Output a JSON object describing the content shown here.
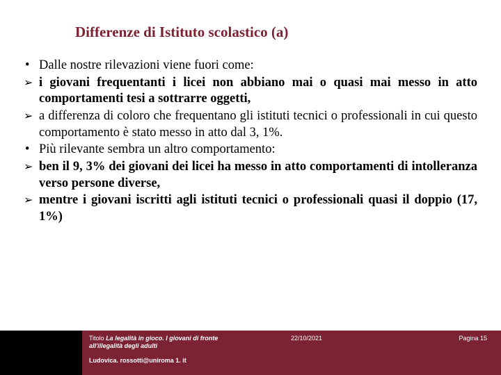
{
  "title_color": "#7b2233",
  "text_color": "#000000",
  "footer_bg": "#7b2233",
  "footer_left_bg": "#000000",
  "title": "Differenze di Istituto scolastico (a)",
  "bullets": [
    {
      "type": "dot",
      "bold": false,
      "justify": false,
      "text": "Dalle nostre rilevazioni viene fuori come:"
    },
    {
      "type": "arrow",
      "bold": true,
      "justify": true,
      "text": " i giovani frequentanti i licei non abbiano mai o quasi mai messo in atto comportamenti tesi a sottrarre oggetti,"
    },
    {
      "type": "arrow",
      "bold": false,
      "justify": true,
      "text": "a differenza di coloro che frequentano gli istituti tecnici o professionali in cui questo comportamento è stato messo in atto dal 3, 1%."
    },
    {
      "type": "dot",
      "bold": false,
      "justify": false,
      "text": "Più rilevante sembra un altro comportamento:"
    },
    {
      "type": "arrow",
      "bold": true,
      "justify": true,
      "text": "ben il 9, 3% dei giovani dei licei ha messo in atto comportamenti di intolleranza verso persone diverse,"
    },
    {
      "type": "arrow",
      "bold": true,
      "justify": true,
      "text": "mentre i giovani iscritti agli istituti tecnici o professionali quasi il doppio (17, 1%)"
    }
  ],
  "footer": {
    "title_prefix": "Titolo ",
    "title_italic": "La legalità in gioco. I giovani di fronte all'illegalità degli adulti",
    "date": "22/10/2021",
    "page": "Pagina 15",
    "author": "Ludovica. rossotti@uniroma 1. it"
  }
}
